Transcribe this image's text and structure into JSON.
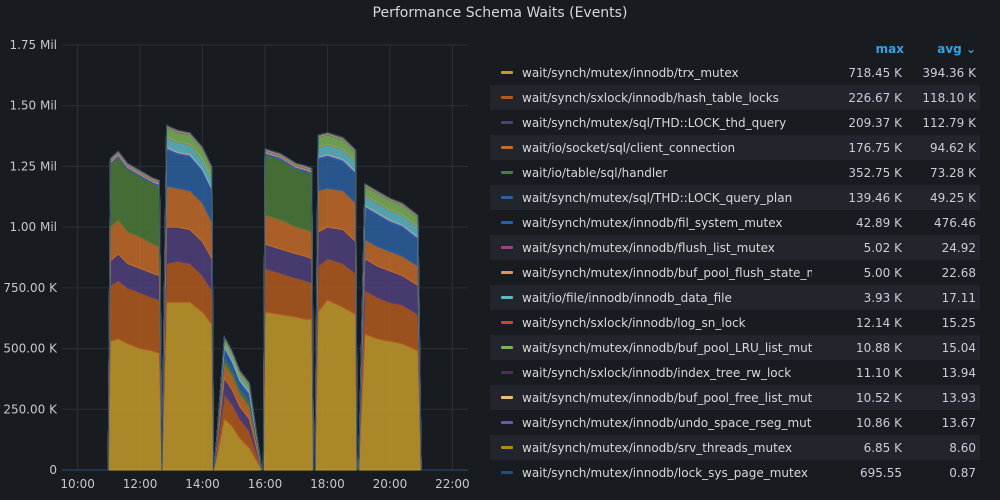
{
  "panel": {
    "title": "Performance Schema Waits (Events)"
  },
  "legend": {
    "max_header": "max",
    "avg_header": "avg ⌄"
  },
  "chart_data": {
    "type": "area",
    "title": "Performance Schema Waits (Events)",
    "stacked": true,
    "x_ticks": [
      "10:00",
      "12:00",
      "14:00",
      "16:00",
      "18:00",
      "20:00",
      "22:00"
    ],
    "y_ticks": [
      "0",
      "250.00 K",
      "500.00 K",
      "750.00 K",
      "1.00 Mil",
      "1.25 Mil",
      "1.50 Mil",
      "1.75 Mil"
    ],
    "ylim": [
      0,
      1750000
    ],
    "xlim_hours": [
      9.5,
      22.5
    ],
    "grid": true,
    "legend_position": "right",
    "x_hours": [
      9.5,
      10.98,
      11.05,
      11.3,
      11.6,
      12.0,
      12.4,
      12.62,
      12.7,
      12.85,
      13.2,
      13.6,
      14.0,
      14.3,
      14.35,
      14.45,
      14.7,
      14.95,
      15.2,
      15.5,
      15.9,
      15.95,
      16.0,
      16.5,
      17.0,
      17.3,
      17.5,
      17.55,
      17.6,
      17.7,
      18.0,
      18.5,
      18.9,
      18.95,
      19.0,
      19.2,
      19.6,
      20.0,
      20.4,
      20.9,
      21.0,
      21.05,
      22.5
    ],
    "series": [
      {
        "name": "wait/synch/mutex/innodb/trx_mutex",
        "color": "#c49a2a",
        "max": "718.45 K",
        "avg": "394.36 K",
        "values": [
          0,
          0,
          530,
          540,
          520,
          500,
          490,
          480,
          0,
          690,
          690,
          690,
          650,
          600,
          0,
          50,
          210,
          180,
          130,
          90,
          0,
          0,
          650,
          640,
          630,
          620,
          620,
          0,
          0,
          650,
          700,
          670,
          640,
          0,
          0,
          560,
          540,
          530,
          520,
          490,
          0,
          0,
          0
        ]
      },
      {
        "name": "wait/synch/sxlock/innodb/hash_table_locks",
        "color": "#b35a1f",
        "max": "226.67 K",
        "avg": "118.10 K",
        "values": [
          0,
          0,
          230,
          240,
          230,
          230,
          220,
          220,
          0,
          160,
          170,
          160,
          150,
          140,
          0,
          20,
          100,
          90,
          80,
          70,
          0,
          0,
          180,
          170,
          160,
          160,
          150,
          0,
          0,
          190,
          170,
          180,
          170,
          0,
          0,
          180,
          170,
          160,
          160,
          150,
          0,
          0,
          0
        ]
      },
      {
        "name": "wait/synch/mutex/sql/THD::LOCK_thd_query",
        "color": "#4f3f7d",
        "max": "209.37 K",
        "avg": "112.79 K",
        "values": [
          0,
          0,
          100,
          110,
          100,
          100,
          100,
          100,
          0,
          150,
          140,
          140,
          140,
          130,
          0,
          20,
          70,
          60,
          50,
          50,
          0,
          0,
          100,
          100,
          100,
          100,
          100,
          0,
          0,
          140,
          130,
          140,
          130,
          0,
          0,
          130,
          130,
          130,
          120,
          120,
          0,
          0,
          0
        ]
      },
      {
        "name": "wait/io/socket/sql/client_connection",
        "color": "#c46b2a",
        "max": "176.75 K",
        "avg": "94.62 K",
        "values": [
          0,
          0,
          140,
          140,
          130,
          130,
          120,
          120,
          0,
          170,
          160,
          160,
          160,
          150,
          0,
          20,
          60,
          60,
          50,
          50,
          0,
          0,
          120,
          120,
          110,
          110,
          110,
          0,
          0,
          170,
          160,
          160,
          160,
          0,
          0,
          80,
          80,
          80,
          80,
          80,
          0,
          0,
          0
        ]
      },
      {
        "name": "wait/io/table/sql/handler",
        "color": "#4f7a3a",
        "max": "352.75 K",
        "avg": "73.28 K",
        "values": [
          0,
          0,
          260,
          260,
          260,
          250,
          250,
          250,
          0,
          0,
          0,
          0,
          0,
          0,
          0,
          0,
          20,
          20,
          20,
          20,
          0,
          0,
          250,
          250,
          240,
          240,
          240,
          0,
          0,
          0,
          0,
          0,
          0,
          0,
          0,
          0,
          0,
          0,
          0,
          0,
          0,
          0,
          0
        ]
      },
      {
        "name": "wait/synch/mutex/sql/THD::LOCK_query_plan",
        "color": "#2a5fa0",
        "max": "139.46 K",
        "avg": "49.25 K",
        "values": [
          0,
          0,
          0,
          0,
          0,
          0,
          0,
          0,
          0,
          150,
          140,
          140,
          130,
          130,
          0,
          10,
          40,
          30,
          30,
          30,
          0,
          0,
          0,
          0,
          0,
          0,
          0,
          0,
          0,
          130,
          130,
          120,
          120,
          0,
          0,
          130,
          130,
          120,
          120,
          110,
          0,
          0,
          0
        ]
      },
      {
        "name": "wait/synch/mutex/innodb/fil_system_mutex",
        "color": "#1f60c4",
        "max": "42.89 K",
        "avg": "476.46",
        "values": [
          0,
          0,
          5,
          5,
          5,
          5,
          5,
          5,
          0,
          5,
          5,
          5,
          5,
          5,
          0,
          0,
          5,
          5,
          5,
          5,
          0,
          0,
          5,
          5,
          5,
          5,
          5,
          0,
          0,
          5,
          5,
          5,
          5,
          0,
          0,
          5,
          5,
          5,
          5,
          5,
          0,
          0,
          0
        ]
      },
      {
        "name": "wait/synch/mutex/innodb/flush_list_mutex",
        "color": "#a0408c",
        "max": "5.02 K",
        "avg": "24.92",
        "values": [
          0,
          0,
          2,
          2,
          2,
          2,
          2,
          2,
          0,
          2,
          2,
          2,
          2,
          2,
          0,
          0,
          2,
          2,
          2,
          2,
          0,
          0,
          2,
          2,
          2,
          2,
          2,
          0,
          0,
          2,
          2,
          2,
          2,
          0,
          0,
          2,
          2,
          2,
          2,
          2,
          0,
          0,
          0
        ]
      },
      {
        "name": "wait/synch/mutex/innodb/buf_pool_flush_state_mutex",
        "color": "#e0925a",
        "max": "5.00 K",
        "avg": "22.68",
        "values": [
          0,
          0,
          2,
          2,
          2,
          2,
          2,
          2,
          0,
          2,
          2,
          2,
          2,
          2,
          0,
          0,
          2,
          2,
          2,
          2,
          0,
          0,
          2,
          2,
          2,
          2,
          2,
          0,
          0,
          2,
          2,
          2,
          2,
          0,
          0,
          2,
          2,
          2,
          2,
          2,
          0,
          0,
          0
        ]
      },
      {
        "name": "wait/io/file/innodb/innodb_data_file",
        "color": "#5fb7c4",
        "max": "3.93 K",
        "avg": "17.11",
        "values": [
          0,
          0,
          2,
          2,
          2,
          2,
          2,
          2,
          0,
          40,
          40,
          40,
          40,
          40,
          0,
          0,
          15,
          15,
          15,
          15,
          0,
          0,
          2,
          2,
          2,
          2,
          2,
          0,
          0,
          40,
          40,
          40,
          40,
          0,
          0,
          40,
          40,
          40,
          40,
          40,
          0,
          0,
          0
        ]
      },
      {
        "name": "wait/synch/sxlock/innodb/log_sn_lock",
        "color": "#c4453a",
        "max": "12.14 K",
        "avg": "15.25",
        "values": [
          0,
          0,
          2,
          2,
          2,
          2,
          2,
          2,
          0,
          2,
          2,
          2,
          2,
          2,
          0,
          0,
          2,
          2,
          2,
          2,
          0,
          0,
          2,
          2,
          2,
          2,
          2,
          0,
          0,
          2,
          2,
          2,
          2,
          0,
          0,
          2,
          2,
          2,
          2,
          2,
          0,
          0,
          0
        ]
      },
      {
        "name": "wait/synch/mutex/innodb/buf_pool_LRU_list_mutex",
        "color": "#7ab35a",
        "max": "10.88 K",
        "avg": "15.04",
        "values": [
          0,
          0,
          2,
          2,
          2,
          2,
          2,
          2,
          0,
          40,
          40,
          40,
          40,
          40,
          0,
          0,
          15,
          15,
          15,
          15,
          0,
          0,
          2,
          2,
          2,
          2,
          2,
          0,
          0,
          40,
          40,
          40,
          40,
          0,
          0,
          40,
          40,
          40,
          40,
          40,
          0,
          0,
          0
        ]
      },
      {
        "name": "wait/synch/sxlock/innodb/index_tree_rw_lock",
        "color": "#5a2a5a",
        "max": "11.10 K",
        "avg": "13.94",
        "values": [
          0,
          0,
          2,
          2,
          2,
          2,
          2,
          2,
          0,
          2,
          2,
          2,
          2,
          2,
          0,
          0,
          2,
          2,
          2,
          2,
          0,
          0,
          2,
          2,
          2,
          2,
          2,
          0,
          0,
          2,
          2,
          2,
          2,
          0,
          0,
          2,
          2,
          2,
          2,
          2,
          0,
          0,
          0
        ]
      },
      {
        "name": "wait/synch/mutex/innodb/buf_pool_free_list_mutex",
        "color": "#e8c07a",
        "max": "10.52 K",
        "avg": "13.93",
        "values": [
          0,
          0,
          2,
          2,
          2,
          2,
          2,
          2,
          0,
          2,
          2,
          2,
          2,
          2,
          0,
          0,
          2,
          2,
          2,
          2,
          0,
          0,
          2,
          2,
          2,
          2,
          2,
          0,
          0,
          2,
          2,
          2,
          2,
          0,
          0,
          2,
          2,
          2,
          2,
          2,
          0,
          0,
          0
        ]
      },
      {
        "name": "wait/synch/mutex/innodb/undo_space_rseg_mutex",
        "color": "#6a5aa8",
        "max": "10.86 K",
        "avg": "13.67",
        "values": [
          0,
          0,
          2,
          2,
          2,
          2,
          2,
          2,
          0,
          2,
          2,
          2,
          2,
          2,
          0,
          0,
          2,
          2,
          2,
          2,
          0,
          0,
          2,
          2,
          2,
          2,
          2,
          0,
          0,
          2,
          2,
          2,
          2,
          0,
          0,
          2,
          2,
          2,
          2,
          2,
          0,
          0,
          0
        ]
      },
      {
        "name": "wait/synch/mutex/innodb/srv_threads_mutex",
        "color": "#b38a1a",
        "max": "6.85 K",
        "avg": "8.60",
        "values": [
          0,
          0,
          2,
          2,
          2,
          2,
          2,
          2,
          0,
          2,
          2,
          2,
          2,
          2,
          0,
          0,
          2,
          2,
          2,
          2,
          0,
          0,
          2,
          2,
          2,
          2,
          2,
          0,
          0,
          2,
          2,
          2,
          2,
          0,
          0,
          2,
          2,
          2,
          2,
          2,
          0,
          0,
          0
        ]
      },
      {
        "name": "wait/synch/mutex/innodb/lock_sys_page_mutex",
        "color": "#1f4f7a",
        "max": "695.55",
        "avg": "0.87",
        "values": [
          0,
          0,
          0,
          0,
          0,
          0,
          0,
          0,
          0,
          0,
          0,
          0,
          0,
          0,
          0,
          0,
          0,
          0,
          0,
          0,
          0,
          0,
          0,
          0,
          0,
          0,
          0,
          0,
          0,
          0,
          0,
          0,
          0,
          0,
          0,
          0,
          0,
          0,
          0,
          0,
          0,
          0,
          0
        ]
      }
    ]
  }
}
